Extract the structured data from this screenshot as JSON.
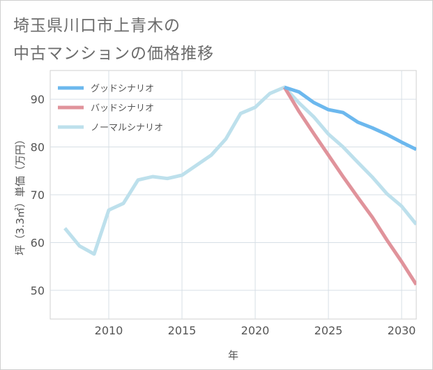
{
  "title_lines": [
    "埼玉県川口市上青木の",
    "中古マンションの価格推移"
  ],
  "chart_data": {
    "type": "line",
    "xlabel": "年",
    "ylabel": "坪（3.3㎡）単価（万円）",
    "xlim": [
      2006,
      2031
    ],
    "ylim": [
      44,
      96
    ],
    "x_ticks": [
      2010,
      2015,
      2020,
      2025,
      2030
    ],
    "y_ticks": [
      50,
      60,
      70,
      80,
      90
    ],
    "grid": true,
    "legend_position": "top-left",
    "series": [
      {
        "name": "グッドシナリオ",
        "color": "#6cb8ee",
        "x": [
          2022,
          2023,
          2024,
          2025,
          2026,
          2027,
          2028,
          2029,
          2030,
          2031
        ],
        "y": [
          92.5,
          91.5,
          89.3,
          87.8,
          87.2,
          85.2,
          84.0,
          82.6,
          81.0,
          79.5
        ]
      },
      {
        "name": "バッドシナリオ",
        "color": "#e0939b",
        "x": [
          2022,
          2023,
          2024,
          2025,
          2026,
          2027,
          2028,
          2029,
          2030,
          2031
        ],
        "y": [
          92.5,
          87.4,
          82.8,
          78.3,
          73.8,
          69.5,
          65.3,
          60.5,
          56.0,
          51.2
        ]
      },
      {
        "name": "ノーマルシナリオ",
        "color": "#bde0ec",
        "x": [
          2007,
          2008,
          2009,
          2010,
          2011,
          2012,
          2013,
          2014,
          2015,
          2016,
          2017,
          2018,
          2019,
          2020,
          2021,
          2022,
          2023,
          2024,
          2025,
          2026,
          2027,
          2028,
          2029,
          2030,
          2031
        ],
        "y": [
          63.0,
          59.3,
          57.6,
          66.8,
          68.2,
          73.1,
          73.8,
          73.4,
          74.1,
          76.2,
          78.3,
          81.7,
          87.0,
          88.3,
          91.2,
          92.5,
          89.2,
          86.3,
          82.7,
          80.0,
          76.8,
          73.7,
          70.2,
          67.6,
          63.8
        ]
      }
    ]
  }
}
